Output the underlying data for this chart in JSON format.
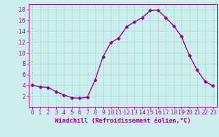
{
  "x": [
    0,
    1,
    2,
    3,
    4,
    5,
    6,
    7,
    8,
    9,
    10,
    11,
    12,
    13,
    14,
    15,
    16,
    17,
    18,
    19,
    20,
    21,
    22,
    23
  ],
  "y": [
    4,
    3.7,
    3.6,
    2.8,
    2.2,
    1.7,
    1.6,
    1.8,
    5.0,
    9.3,
    11.9,
    12.7,
    14.8,
    15.7,
    16.5,
    17.8,
    17.9,
    16.5,
    15.0,
    13.0,
    9.5,
    6.8,
    4.7,
    3.9
  ],
  "line_color": "#990099",
  "marker": "D",
  "markersize": 2.5,
  "linewidth": 1.0,
  "bg_color": "#cceeed",
  "grid_color": "#aadddc",
  "xlabel": "Windchill (Refroidissement éolien,°C)",
  "ylabel": "",
  "xlim": [
    -0.5,
    23.5
  ],
  "ylim": [
    0,
    19
  ],
  "yticks": [
    2,
    4,
    6,
    8,
    10,
    12,
    14,
    16,
    18
  ],
  "xticks": [
    0,
    1,
    2,
    3,
    4,
    5,
    6,
    7,
    8,
    9,
    10,
    11,
    12,
    13,
    14,
    15,
    16,
    17,
    18,
    19,
    20,
    21,
    22,
    23
  ],
  "tick_color": "#990099",
  "label_color": "#990099",
  "xlabel_fontsize": 6.5,
  "tick_fontsize": 6.0
}
